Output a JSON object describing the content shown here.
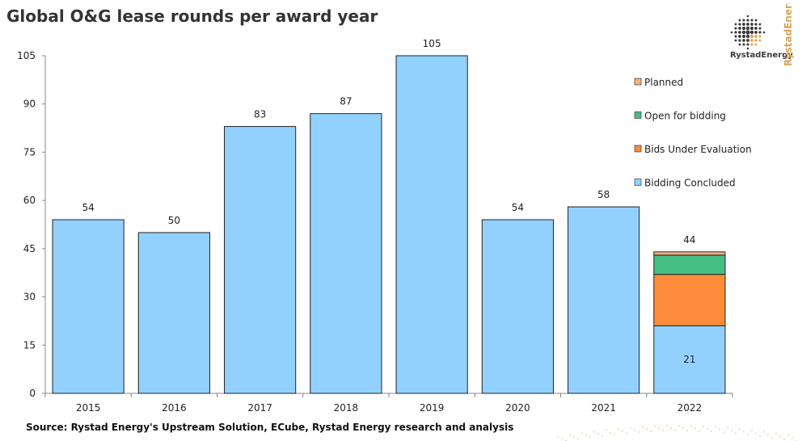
{
  "title": "Global O&G lease rounds per award year",
  "source": "Source: Rystad Energy's Upstream Solution,  ECube, Rystad Energy research and analysis",
  "logo": {
    "text": "RystadEnergy",
    "side_text": "RystadEnergy",
    "icon": "globe-dots-icon"
  },
  "colors": {
    "bidding_concluded": "#92D1FF",
    "bids_under_evaluation": "#FF8C3A",
    "open_for_bidding": "#45BE85",
    "planned": "#F7B07C"
  },
  "chart_data": {
    "type": "bar",
    "stacked": true,
    "categories": [
      "2015",
      "2016",
      "2017",
      "2018",
      "2019",
      "2020",
      "2021",
      "2022"
    ],
    "series": [
      {
        "name": "Bidding Concluded",
        "values": [
          54,
          50,
          83,
          87,
          105,
          54,
          58,
          21
        ]
      },
      {
        "name": "Bids Under Evaluation",
        "values": [
          0,
          0,
          0,
          0,
          0,
          0,
          0,
          16
        ]
      },
      {
        "name": "Open for bidding",
        "values": [
          0,
          0,
          0,
          0,
          0,
          0,
          0,
          6
        ]
      },
      {
        "name": "Planned",
        "values": [
          0,
          0,
          0,
          0,
          0,
          0,
          0,
          1
        ]
      }
    ],
    "totals": [
      "54",
      "50",
      "83",
      "87",
      "105",
      "54",
      "58",
      "44"
    ],
    "segment_labels": [
      {
        "category": "2022",
        "series": "Bidding Concluded",
        "label": "21"
      }
    ],
    "yticks": [
      "0",
      "15",
      "30",
      "45",
      "60",
      "75",
      "90",
      "105"
    ],
    "ylim": [
      0,
      105
    ],
    "legend": [
      "Planned",
      "Open for bidding",
      "Bids Under Evaluation",
      "Bidding Concluded"
    ],
    "legend_position": "right",
    "grid": false
  }
}
